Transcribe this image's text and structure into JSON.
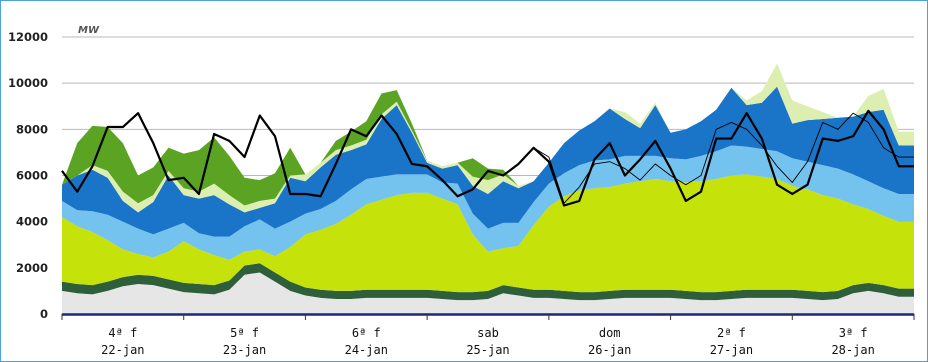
{
  "chart_data": {
    "type": "area",
    "unit_label": "MW",
    "ylim": [
      0,
      12000
    ],
    "yticks": [
      0,
      2000,
      4000,
      6000,
      8000,
      10000,
      12000
    ],
    "grid": true,
    "categories": [
      {
        "day": "4ª f",
        "date": "22-jan"
      },
      {
        "day": "5ª f",
        "date": "23-jan"
      },
      {
        "day": "6ª f",
        "date": "24-jan"
      },
      {
        "day": "sab",
        "date": "25-jan"
      },
      {
        "day": "dom",
        "date": "26-jan"
      },
      {
        "day": "2ª f",
        "date": "27-jan"
      },
      {
        "day": "3ª f",
        "date": "28-jan"
      }
    ],
    "x": [
      0,
      3,
      6,
      9,
      12,
      15,
      18,
      21
    ],
    "series": [
      {
        "color": "#e6e6e6",
        "values": [
          [
            1000,
            900,
            850,
            1000,
            1200,
            1300,
            1250,
            1100
          ],
          [
            950,
            900,
            850,
            1050,
            1700,
            1800,
            1400,
            1000
          ],
          [
            800,
            700,
            650,
            650,
            700,
            700,
            700,
            700
          ],
          [
            700,
            650,
            600,
            600,
            650,
            900,
            800,
            700
          ],
          [
            700,
            650,
            600,
            600,
            650,
            700,
            700,
            700
          ],
          [
            700,
            650,
            600,
            600,
            650,
            700,
            700,
            700
          ],
          [
            700,
            650,
            600,
            650,
            900,
            1000,
            900,
            750
          ]
        ]
      },
      {
        "color": "#2f5e3a",
        "values": [
          [
            400,
            400,
            400,
            400,
            400,
            400,
            400,
            400
          ],
          [
            400,
            400,
            400,
            400,
            400,
            400,
            400,
            400
          ],
          [
            350,
            350,
            350,
            350,
            350,
            350,
            350,
            350
          ],
          [
            350,
            350,
            350,
            350,
            350,
            350,
            350,
            350
          ],
          [
            350,
            350,
            350,
            350,
            350,
            350,
            350,
            350
          ],
          [
            350,
            350,
            350,
            350,
            350,
            350,
            350,
            350
          ],
          [
            350,
            350,
            350,
            350,
            350,
            350,
            350,
            350
          ]
        ]
      },
      {
        "color": "#c5e30a",
        "values": [
          [
            2800,
            2500,
            2300,
            1800,
            1200,
            900,
            800,
            1200
          ],
          [
            1800,
            1500,
            1300,
            900,
            600,
            600,
            700,
            1500
          ],
          [
            2300,
            2600,
            2900,
            3300,
            3700,
            3900,
            4100,
            4200
          ],
          [
            4200,
            4000,
            3800,
            2500,
            1700,
            1600,
            1800,
            2800
          ],
          [
            3600,
            4100,
            4400,
            4500,
            4500,
            4600,
            4700,
            4800
          ],
          [
            4700,
            4700,
            4800,
            4900,
            5000,
            5000,
            4900,
            4800
          ],
          [
            4500,
            4400,
            4200,
            4000,
            3500,
            3200,
            3000,
            2900
          ]
        ]
      },
      {
        "color": "#74c2ee",
        "values": [
          [
            700,
            700,
            900,
            1100,
            1200,
            1100,
            1000,
            1000
          ],
          [
            800,
            700,
            800,
            1000,
            1100,
            1300,
            1200,
            1100
          ],
          [
            900,
            900,
            1000,
            1100,
            1100,
            1000,
            900,
            800
          ],
          [
            800,
            700,
            900,
            900,
            1000,
            1100,
            1000,
            1000
          ],
          [
            1000,
            1000,
            1100,
            1200,
            1200,
            1200,
            1100,
            1000
          ],
          [
            1000,
            1000,
            1100,
            1200,
            1300,
            1200,
            1200,
            1200
          ],
          [
            1200,
            1200,
            1300,
            1300,
            1300,
            1200,
            1200,
            1200
          ]
        ]
      },
      {
        "color": "#1a74c8",
        "values": [
          [
            700,
            1500,
            1800,
            1600,
            900,
            700,
            1400,
            2300
          ],
          [
            1200,
            1500,
            1800,
            1400,
            600,
            500,
            1100,
            1900
          ],
          [
            1400,
            1800,
            2000,
            1700,
            1500,
            2500,
            3000,
            1800
          ],
          [
            500,
            600,
            800,
            1200,
            1500,
            1800,
            1500,
            900
          ],
          [
            900,
            1300,
            1500,
            1700,
            2200,
            1600,
            1200,
            2200
          ],
          [
            1100,
            1300,
            1500,
            1800,
            2500,
            1800,
            2000,
            2800
          ],
          [
            1500,
            1800,
            2000,
            2200,
            2500,
            3000,
            3400,
            2100
          ]
        ]
      },
      {
        "color": "#dceeb0",
        "values": [
          [
            0,
            0,
            200,
            300,
            400,
            400,
            300,
            200
          ],
          [
            300,
            300,
            500,
            400,
            300,
            300,
            200,
            100
          ],
          [
            300,
            200,
            200,
            200,
            200,
            200,
            150,
            100
          ],
          [
            100,
            100,
            100,
            400,
            600,
            300,
            100,
            0
          ],
          [
            0,
            0,
            0,
            0,
            0,
            300,
            200,
            100
          ],
          [
            0,
            0,
            0,
            0,
            0,
            200,
            500,
            1000
          ],
          [
            1000,
            600,
            300,
            0,
            0,
            700,
            900,
            600
          ]
        ]
      },
      {
        "color": "#5ba323",
        "values": [
          [
            0,
            1400,
            1700,
            1900,
            2100,
            1200,
            1200,
            1000
          ],
          [
            1500,
            1800,
            2000,
            1700,
            1200,
            900,
            1100,
            1200
          ],
          [
            0,
            0,
            400,
            600,
            800,
            900,
            500,
            300
          ],
          [
            0,
            0,
            0,
            800,
            500,
            200,
            0,
            0
          ],
          [
            0,
            0,
            0,
            0,
            0,
            0,
            0,
            0
          ],
          [
            0,
            0,
            0,
            0,
            0,
            0,
            0,
            0
          ],
          [
            0,
            0,
            0,
            0,
            0,
            0,
            0,
            0
          ]
        ]
      }
    ],
    "lines": [
      {
        "color": "#000000",
        "width": 2.2,
        "values": [
          [
            6200,
            5300,
            6400,
            8100,
            8100,
            8700,
            7400,
            5800
          ],
          [
            5900,
            5200,
            7800,
            7500,
            6800,
            8600,
            7700,
            5200
          ],
          [
            5200,
            5100,
            6500,
            8000,
            7700,
            8600,
            7800,
            6500
          ],
          [
            6400,
            5800,
            5100,
            5400,
            6200,
            6000,
            6500,
            7200
          ],
          [
            6600,
            4700,
            4900,
            6700,
            7400,
            6000,
            6700,
            7500
          ],
          [
            6300,
            4900,
            5300,
            7600,
            7600,
            8700,
            7600,
            5600
          ],
          [
            5200,
            5600,
            7600,
            7500,
            7700,
            8800,
            8000,
            6400
          ]
        ]
      },
      {
        "color": "#000000",
        "width": 0.9,
        "values": [
          [
            6200,
            5300,
            6400,
            8100,
            8100,
            8700,
            7400,
            5800
          ],
          [
            5900,
            5200,
            7800,
            7500,
            6800,
            8600,
            7700,
            5200
          ],
          [
            5200,
            5100,
            6500,
            8000,
            7700,
            8600,
            7800,
            6500
          ],
          [
            6400,
            5800,
            5100,
            5400,
            6200,
            6000,
            6500,
            7200
          ],
          [
            6800,
            4800,
            5500,
            6500,
            6600,
            6300,
            5800,
            6500
          ],
          [
            6000,
            5600,
            6000,
            8000,
            8300,
            8000,
            7300,
            6400
          ],
          [
            5700,
            6600,
            8300,
            8000,
            8700,
            8300,
            7200,
            6800
          ]
        ]
      }
    ]
  }
}
